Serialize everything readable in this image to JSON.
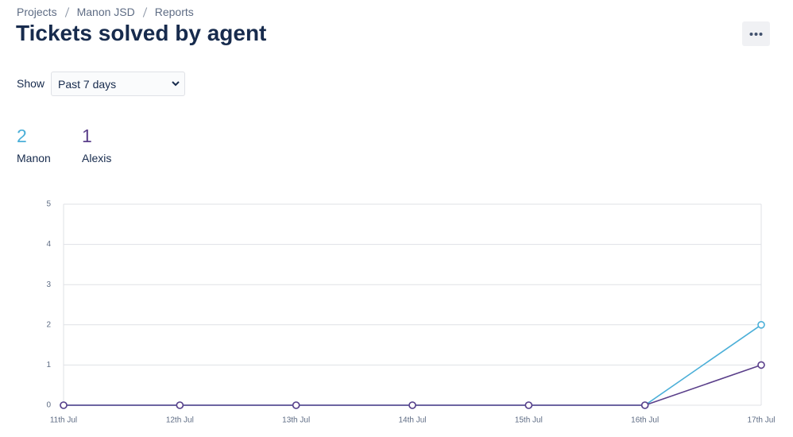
{
  "breadcrumbs": [
    "Projects",
    "Manon JSD",
    "Reports"
  ],
  "title": "Tickets solved by agent",
  "show_label": "Show",
  "show_value": "Past 7 days",
  "totals": [
    2,
    1
  ],
  "chart_data": {
    "type": "line",
    "categories": [
      "11th Jul",
      "12th Jul",
      "13th Jul",
      "14th Jul",
      "15th Jul",
      "16th Jul",
      "17th Jul"
    ],
    "series": [
      {
        "name": "Manon",
        "color": "#4bafd8",
        "values": [
          0,
          0,
          0,
          0,
          0,
          0,
          2
        ]
      },
      {
        "name": "Alexis",
        "color": "#5a3f8a",
        "values": [
          0,
          0,
          0,
          0,
          0,
          0,
          1
        ]
      }
    ],
    "ylim": [
      0,
      5
    ],
    "yticks": [
      0,
      1,
      2,
      3,
      4,
      5
    ],
    "grid": true
  }
}
